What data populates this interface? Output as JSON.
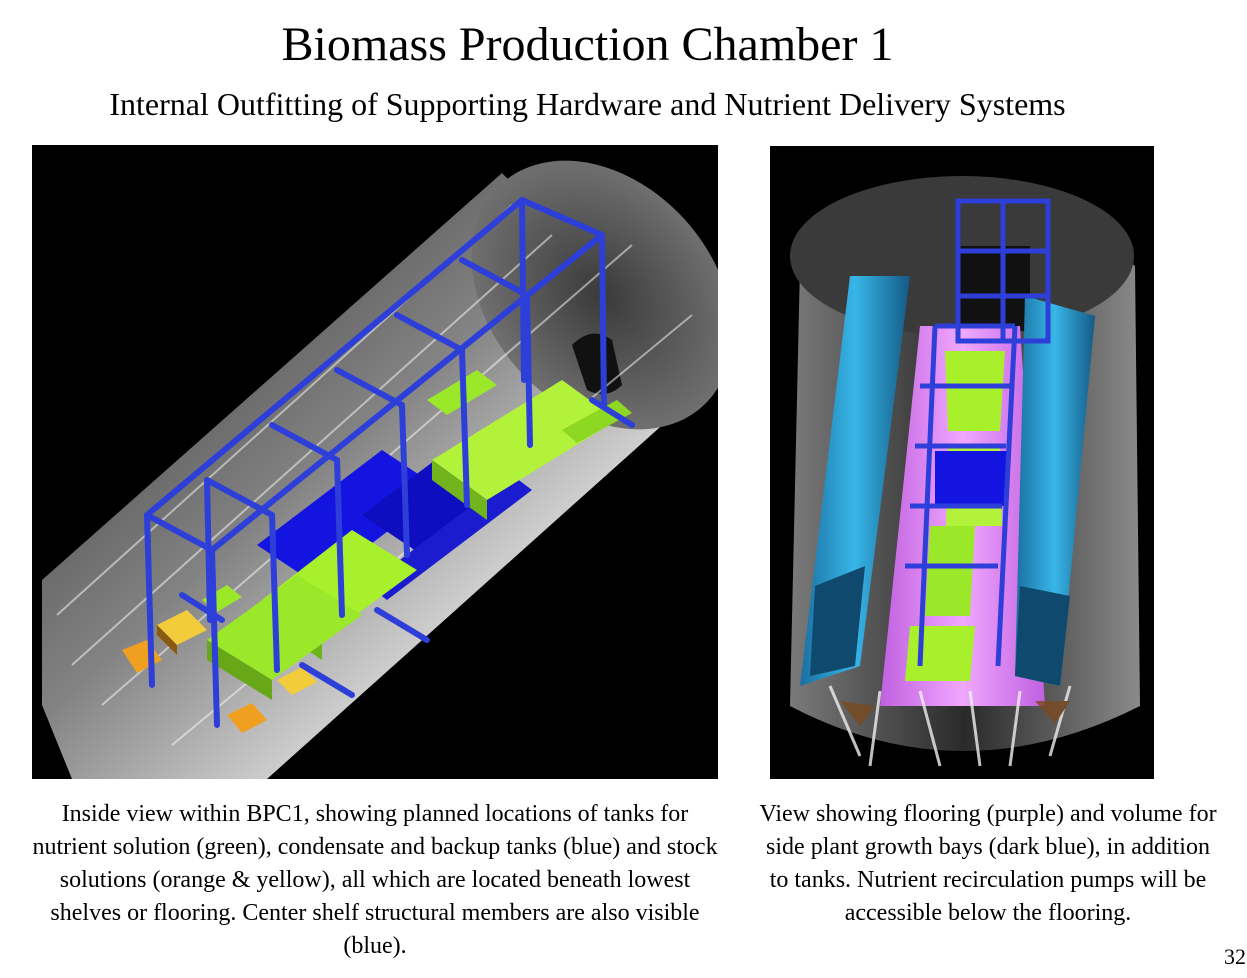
{
  "slide": {
    "title": "Biomass Production Chamber 1",
    "subtitle": "Internal Outfitting of Supporting Hardware and Nutrient Delivery Systems",
    "page_number": "32"
  },
  "figures": {
    "left": {
      "caption": "Inside view within BPC1, showing planned locations of tanks for nutrient solution (green), condensate and backup tanks (blue) and stock solutions (orange & yellow), all which are located beneath lowest shelves or flooring.  Center shelf structural members are also visible (blue)."
    },
    "right": {
      "caption": "View showing flooring (purple) and volume for side plant growth bays (dark blue), in addition to tanks.  Nutrient recirculation pumps will be accessible below the flooring."
    }
  },
  "colors": {
    "background": "#ffffff",
    "panel_background": "#000000",
    "nutrient_tank_green": "#9be82a",
    "backup_tank_blue": "#1414e0",
    "stock_solution_orange": "#f0a020",
    "stock_solution_yellow": "#f2cc3a",
    "shelf_frame_blue": "#2d3fd8",
    "flooring_purple": "#e080f0",
    "side_bay_blue": "#2aa0d0"
  }
}
